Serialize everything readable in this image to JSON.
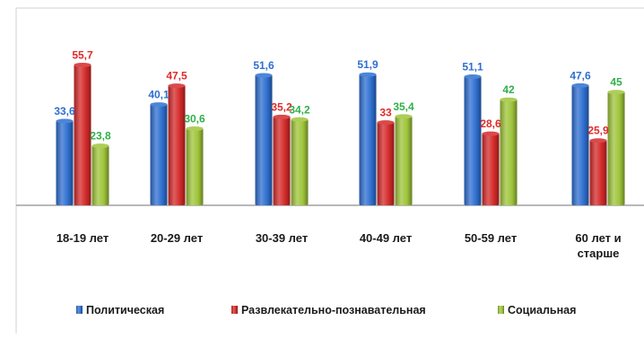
{
  "chart_data": {
    "type": "bar",
    "categories": [
      "18-19 лет",
      "20-29 лет",
      "30-39 лет",
      "40-49 лет",
      "50-59 лет",
      "60 лет и старше"
    ],
    "series": [
      {
        "name": "Политическая",
        "values": [
          33.6,
          40.1,
          51.6,
          51.9,
          51.1,
          47.6
        ],
        "labels": [
          "33,6",
          "40,1",
          "51,6",
          "51,9",
          "51,1",
          "47,6"
        ],
        "color": "#2e6fd0",
        "label_color": "#2e6fd0"
      },
      {
        "name": "Развлекательно-познавательная",
        "values": [
          55.7,
          47.5,
          35.2,
          33,
          28.6,
          25.9
        ],
        "labels": [
          "55,7",
          "47,5",
          "35,2",
          "33",
          "28,6",
          "25,9"
        ],
        "color": "#d42a2a",
        "label_color": "#e02b2b"
      },
      {
        "name": "Социальная",
        "values": [
          23.8,
          30.6,
          34.2,
          35.4,
          42,
          45
        ],
        "labels": [
          "23,8",
          "30,6",
          "34,2",
          "35,4",
          "42",
          "45"
        ],
        "color": "#9ec43a",
        "label_color": "#2fb04a"
      }
    ],
    "ylim": [
      0,
      70
    ],
    "grid": false,
    "legend_position": "bottom",
    "title": "",
    "xlabel": "",
    "ylabel": ""
  }
}
